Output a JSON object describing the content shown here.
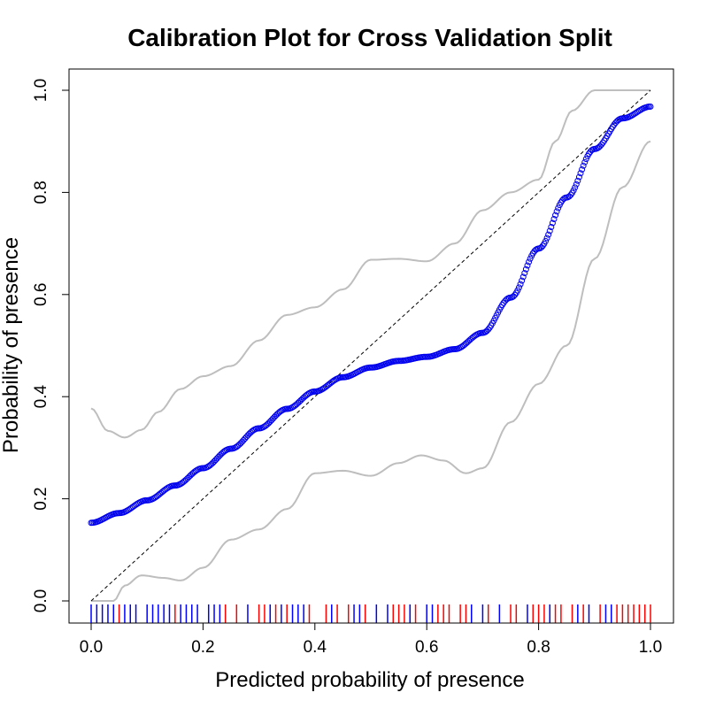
{
  "chart_data": {
    "type": "line",
    "title": "Calibration Plot for Cross Validation Split",
    "xlabel": "Predicted probability of presence",
    "ylabel": "Probability of presence",
    "xlim": [
      0,
      1
    ],
    "ylim": [
      0,
      1
    ],
    "x_ticks": [
      "0.0",
      "0.2",
      "0.4",
      "0.6",
      "0.8",
      "1.0"
    ],
    "y_ticks": [
      "0.0",
      "0.2",
      "0.4",
      "0.6",
      "0.8",
      "1.0"
    ],
    "grid": false,
    "legend": "none",
    "colors": {
      "calibration": "#0000ee",
      "confidence_band": "#bebebe",
      "reference": "#000000",
      "rug_absence": "#0000ff",
      "rug_presence": "#ff0000"
    },
    "series": [
      {
        "role": "calibration-curve",
        "x": [
          0.0,
          0.05,
          0.1,
          0.15,
          0.2,
          0.25,
          0.3,
          0.35,
          0.4,
          0.45,
          0.5,
          0.55,
          0.6,
          0.65,
          0.7,
          0.75,
          0.8,
          0.85,
          0.9,
          0.95,
          1.0
        ],
        "y": [
          0.153,
          0.172,
          0.197,
          0.226,
          0.26,
          0.298,
          0.338,
          0.376,
          0.41,
          0.438,
          0.457,
          0.47,
          0.478,
          0.493,
          0.525,
          0.594,
          0.69,
          0.79,
          0.885,
          0.945,
          0.968
        ]
      },
      {
        "role": "upper-band",
        "x": [
          0.0,
          0.03,
          0.06,
          0.09,
          0.12,
          0.16,
          0.2,
          0.25,
          0.3,
          0.35,
          0.4,
          0.45,
          0.5,
          0.55,
          0.6,
          0.65,
          0.7,
          0.75,
          0.8,
          0.83,
          0.86,
          0.9,
          0.95,
          1.0
        ],
        "y": [
          0.377,
          0.333,
          0.32,
          0.335,
          0.37,
          0.415,
          0.44,
          0.46,
          0.51,
          0.56,
          0.575,
          0.61,
          0.668,
          0.67,
          0.665,
          0.7,
          0.765,
          0.8,
          0.825,
          0.9,
          0.96,
          1.0,
          1.0,
          1.0
        ]
      },
      {
        "role": "lower-band",
        "x": [
          0.0,
          0.04,
          0.06,
          0.09,
          0.13,
          0.16,
          0.2,
          0.25,
          0.3,
          0.35,
          0.4,
          0.45,
          0.5,
          0.55,
          0.59,
          0.63,
          0.67,
          0.7,
          0.75,
          0.8,
          0.85,
          0.9,
          0.95,
          1.0
        ],
        "y": [
          0.0,
          0.0,
          0.03,
          0.05,
          0.045,
          0.04,
          0.065,
          0.12,
          0.14,
          0.18,
          0.25,
          0.255,
          0.245,
          0.27,
          0.285,
          0.275,
          0.25,
          0.26,
          0.35,
          0.425,
          0.5,
          0.67,
          0.81,
          0.9
        ]
      },
      {
        "role": "reference-line",
        "x": [
          0,
          1
        ],
        "y": [
          0,
          1
        ]
      }
    ],
    "rug_absence_x": [
      0.0,
      0.01,
      0.02,
      0.03,
      0.04,
      0.06,
      0.07,
      0.08,
      0.1,
      0.11,
      0.12,
      0.13,
      0.14,
      0.16,
      0.17,
      0.18,
      0.19,
      0.21,
      0.22,
      0.23,
      0.28,
      0.32,
      0.34,
      0.36,
      0.37,
      0.38,
      0.43,
      0.47,
      0.48,
      0.51,
      0.53,
      0.57,
      0.6,
      0.61,
      0.68,
      0.7,
      0.73,
      0.78,
      0.82,
      0.87,
      0.89,
      0.92,
      0.93
    ],
    "rug_presence_x": [
      0.05,
      0.15,
      0.24,
      0.26,
      0.3,
      0.31,
      0.33,
      0.35,
      0.39,
      0.42,
      0.44,
      0.46,
      0.49,
      0.54,
      0.55,
      0.56,
      0.58,
      0.62,
      0.63,
      0.64,
      0.66,
      0.67,
      0.71,
      0.75,
      0.76,
      0.79,
      0.8,
      0.81,
      0.83,
      0.84,
      0.86,
      0.88,
      0.91,
      0.94,
      0.95,
      0.96,
      0.97,
      0.98,
      0.99,
      1.0
    ]
  }
}
